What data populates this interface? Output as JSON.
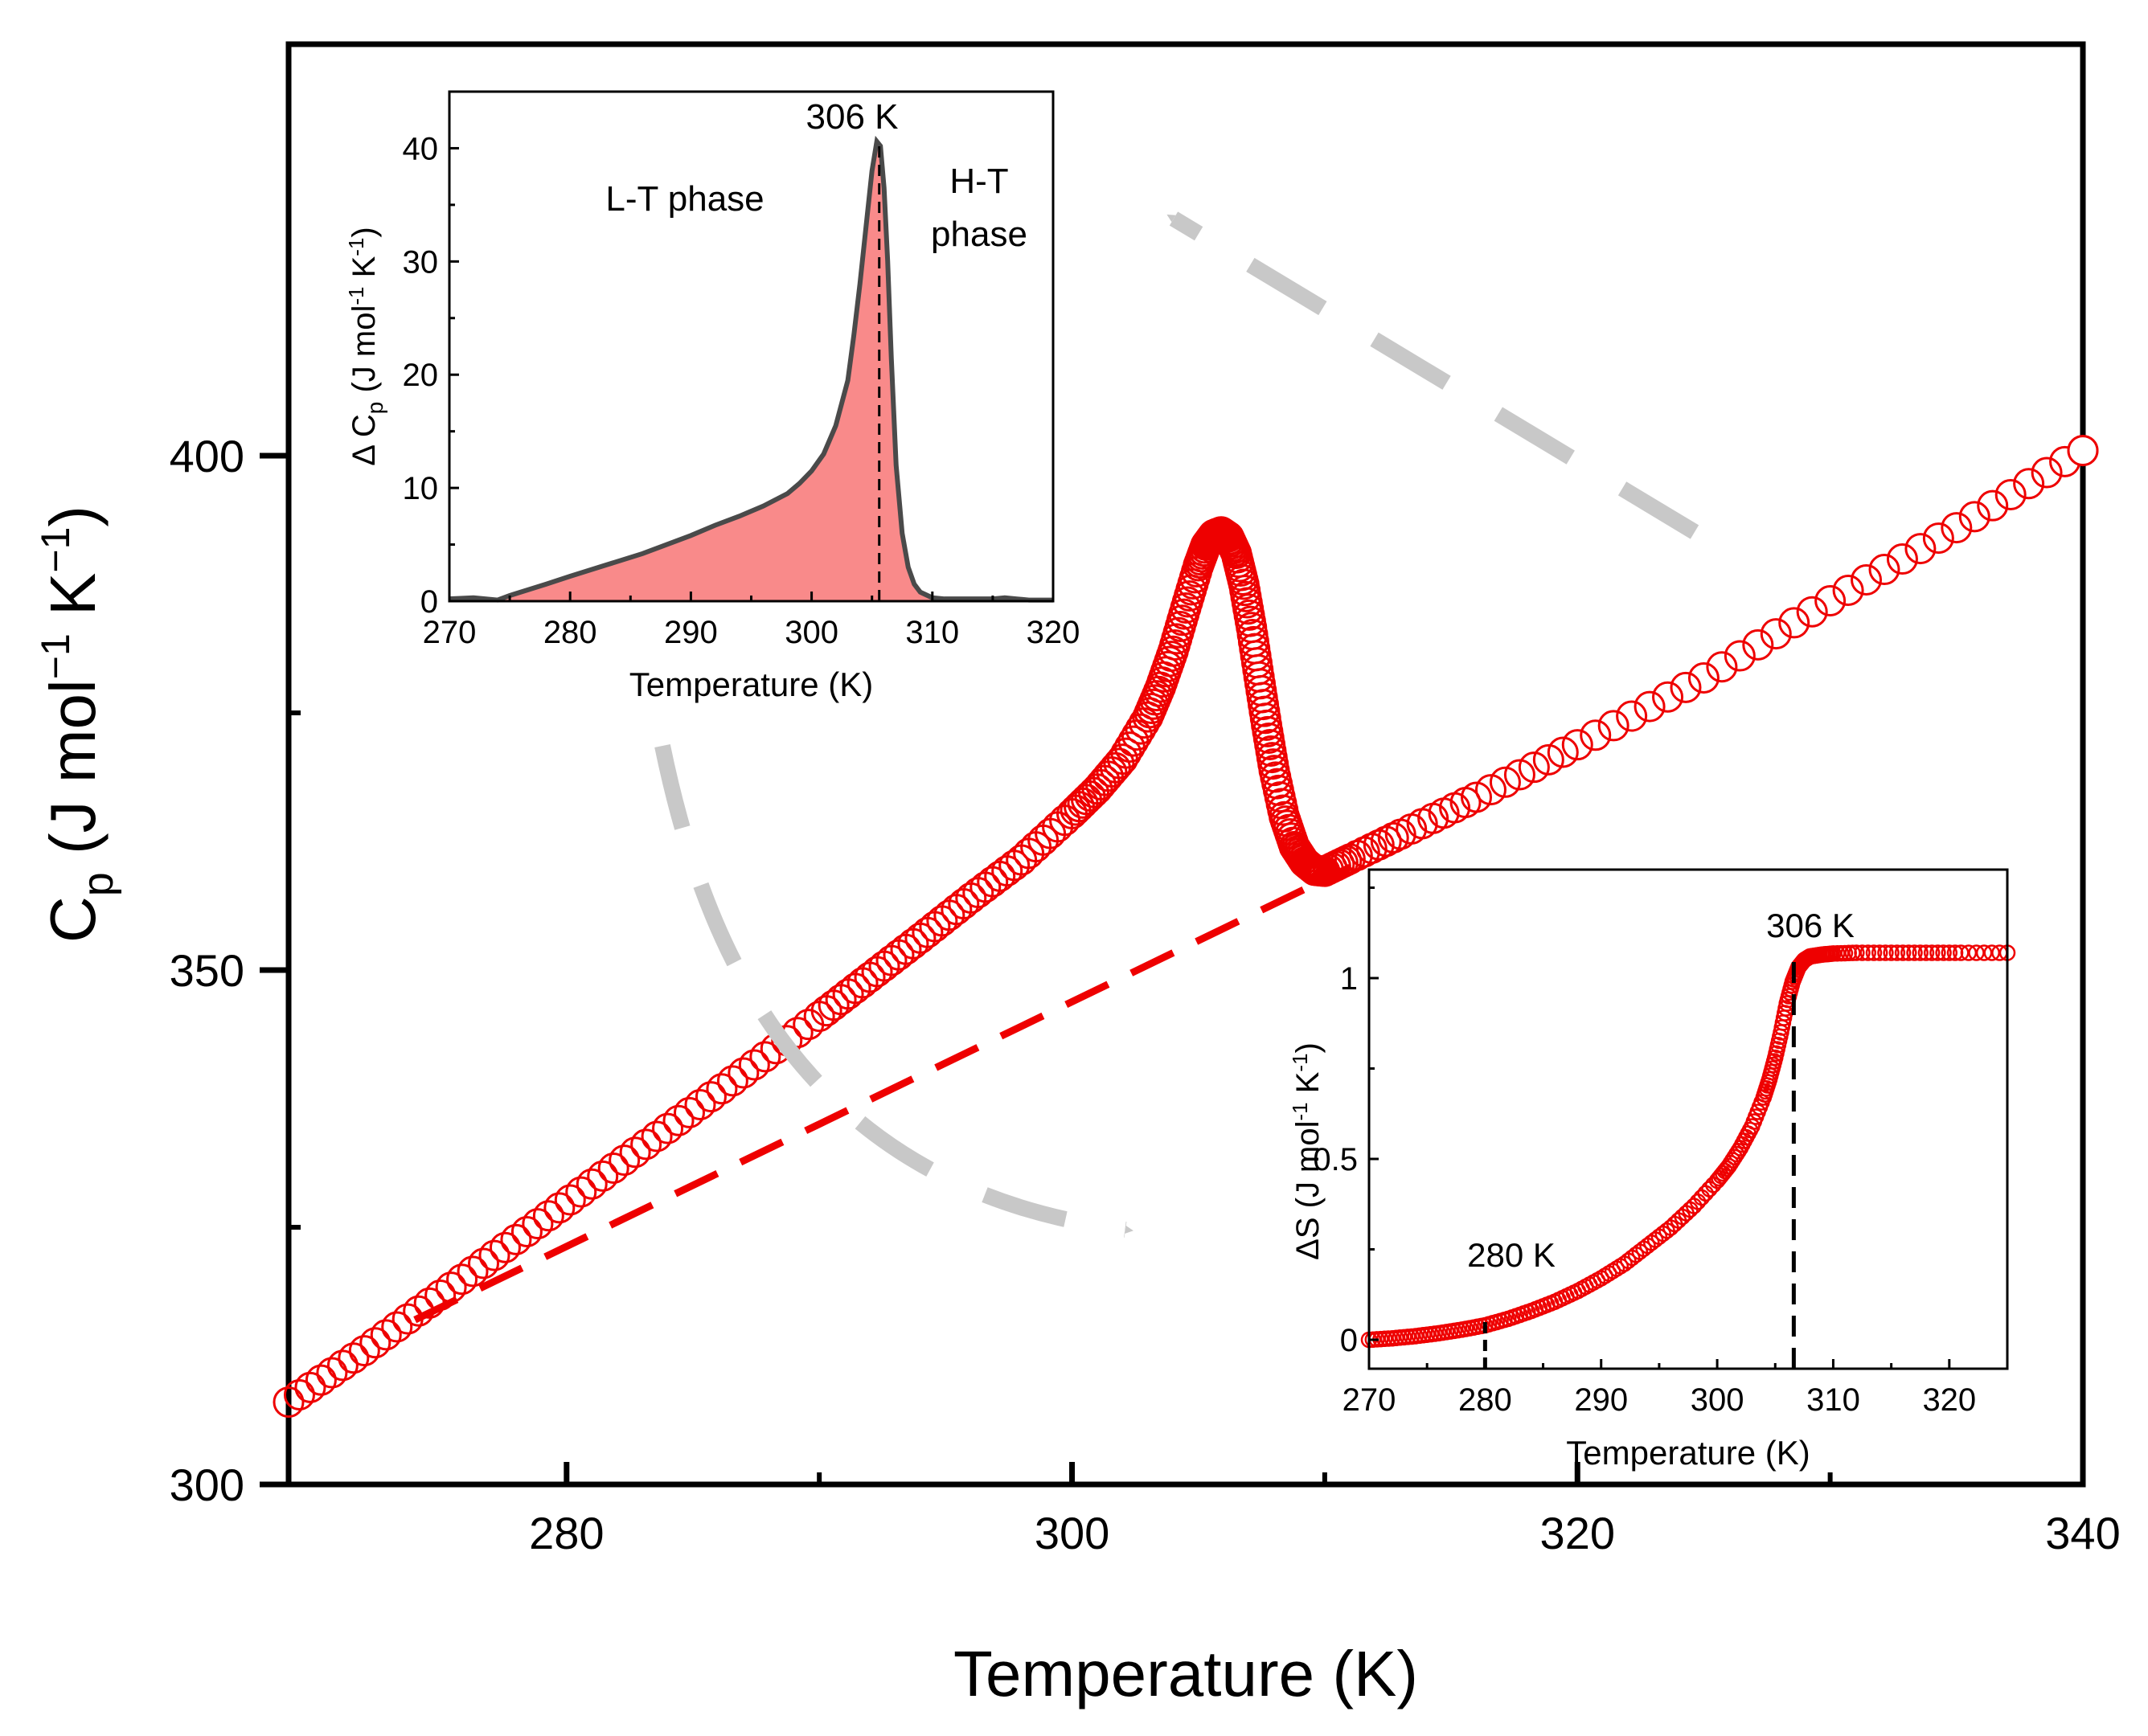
{
  "colors": {
    "series": "#ee0000",
    "fill": "#f98a8a",
    "line": "#4a4a4a",
    "arrow": "#c8c8c8",
    "axis": "#000000"
  },
  "chart_data": [
    {
      "id": "main",
      "type": "scatter",
      "xlabel": "Temperature (K)",
      "ylabel_parts": [
        "C",
        "p",
        " (J mol",
        "−1",
        " K",
        "−1",
        ")"
      ],
      "xlim": [
        269,
        340
      ],
      "ylim": [
        300,
        440
      ],
      "xticks": [
        280,
        300,
        320,
        340
      ],
      "xtick_labels": [
        "280",
        "300",
        "320",
        "340"
      ],
      "xminor": [
        290,
        310,
        330
      ],
      "yticks": [
        300,
        350,
        400
      ],
      "ytick_labels": [
        "300",
        "350",
        "400"
      ],
      "yminor": [
        325,
        375
      ],
      "series": [
        {
          "name": "Cp",
          "style": "open-circles",
          "x": [
            269,
            272,
            275,
            278,
            281,
            284,
            287,
            290,
            292,
            294,
            296,
            298,
            300,
            301,
            302,
            303,
            303.5,
            304,
            304.5,
            305,
            305.3,
            305.6,
            305.9,
            306.2,
            306.5,
            306.8,
            307.1,
            307.4,
            307.7,
            308,
            308.4,
            308.8,
            309.2,
            309.6,
            310,
            311,
            313,
            316,
            320,
            325,
            330,
            335,
            340
          ],
          "y": [
            308,
            313,
            318.4,
            323.8,
            329.2,
            334.6,
            340,
            345.5,
            349.3,
            353.1,
            357,
            360.7,
            365.2,
            367.6,
            370.5,
            374.6,
            377.5,
            381,
            385.2,
            389.3,
            391.3,
            392.3,
            392.6,
            392.1,
            390.5,
            387.5,
            383.3,
            378.5,
            373.8,
            369.4,
            364.9,
            362,
            360.5,
            359.7,
            359.6,
            360.8,
            363.2,
            366.8,
            371.9,
            378.4,
            385.9,
            393,
            400.5
          ]
        },
        {
          "name": "baseline",
          "style": "dashed",
          "x": [
            274,
            311
          ],
          "y": [
            316,
            360
          ]
        }
      ],
      "arrows": [
        {
          "from": "main-peak",
          "to": "inset-1",
          "shape": "straight-dashed-arrow"
        },
        {
          "from": "left-of-main-curve",
          "to": "inset-2",
          "shape": "curved-dashed-arrow"
        }
      ]
    },
    {
      "id": "inset-1",
      "type": "area",
      "xlabel": "Temperature (K)",
      "ylabel_parts": [
        "Δ C",
        "p",
        " (J mol",
        "-1",
        " K",
        "-1",
        ")"
      ],
      "xlim": [
        270,
        320
      ],
      "ylim": [
        0,
        45
      ],
      "xticks": [
        270,
        280,
        290,
        300,
        310,
        320
      ],
      "xtick_labels": [
        "270",
        "280",
        "290",
        "300",
        "310",
        "320"
      ],
      "yticks": [
        0,
        10,
        20,
        30,
        40
      ],
      "ytick_labels": [
        "0",
        "10",
        "20",
        "30",
        "40"
      ],
      "series": [
        {
          "name": "ΔCp",
          "x": [
            270,
            272,
            274,
            275,
            278,
            280,
            283,
            286,
            288,
            290,
            292,
            294,
            296,
            298,
            299,
            300,
            301,
            302,
            303,
            303.5,
            304,
            304.5,
            305,
            305.4,
            305.7,
            306,
            306.3,
            306.6,
            307,
            307.5,
            308,
            308.5,
            309,
            310,
            311,
            313,
            315,
            316,
            317,
            318,
            320
          ],
          "y": [
            0.2,
            0.3,
            0.1,
            0.5,
            1.5,
            2.2,
            3.2,
            4.2,
            5.0,
            5.8,
            6.7,
            7.5,
            8.4,
            9.5,
            10.4,
            11.5,
            13,
            15.5,
            19.5,
            23.5,
            28,
            33,
            38,
            40.6,
            40.2,
            36.5,
            30,
            21.5,
            12,
            6,
            3,
            1.5,
            0.8,
            0.3,
            0.2,
            0.2,
            0.2,
            0.3,
            0.2,
            0.1,
            0.1
          ]
        }
      ],
      "annotations": [
        {
          "text": "306 K",
          "x": 305.6,
          "kind": "dashed-vline"
        },
        {
          "text": "L-T phase"
        },
        {
          "text_lines": [
            "H-T",
            "phase"
          ]
        }
      ]
    },
    {
      "id": "inset-2",
      "type": "scatter",
      "xlabel": "Temperature (K)",
      "ylabel_parts": [
        "ΔS (J mol",
        "-1",
        " K",
        "-1",
        ")"
      ],
      "xlim": [
        270,
        325
      ],
      "ylim": [
        -0.08,
        1.3
      ],
      "xticks": [
        270,
        280,
        290,
        300,
        310,
        320
      ],
      "xtick_labels": [
        "270",
        "280",
        "290",
        "300",
        "310",
        "320"
      ],
      "yticks": [
        0,
        0.5,
        1
      ],
      "ytick_labels": [
        "0",
        "0.5",
        "1"
      ],
      "series": [
        {
          "name": "ΔS",
          "style": "open-circles",
          "x": [
            270,
            272,
            274,
            276,
            278,
            280,
            282,
            284,
            286,
            288,
            290,
            292,
            294,
            296,
            298,
            300,
            301,
            302,
            303,
            304,
            304.5,
            305,
            305.5,
            306,
            306.5,
            307,
            307.5,
            308,
            309,
            310,
            312,
            315,
            318,
            321,
            325
          ],
          "y": [
            0,
            0.004,
            0.01,
            0.018,
            0.028,
            0.04,
            0.058,
            0.08,
            0.105,
            0.135,
            0.17,
            0.21,
            0.26,
            0.31,
            0.37,
            0.44,
            0.48,
            0.53,
            0.59,
            0.67,
            0.72,
            0.78,
            0.85,
            0.93,
            0.99,
            1.03,
            1.05,
            1.06,
            1.065,
            1.068,
            1.07,
            1.07,
            1.07,
            1.07,
            1.07
          ]
        }
      ],
      "annotations": [
        {
          "text": "306 K",
          "x": 306.6,
          "kind": "dashed-vline"
        },
        {
          "text": "280 K",
          "x": 280,
          "kind": "dashed-vline"
        }
      ]
    }
  ]
}
